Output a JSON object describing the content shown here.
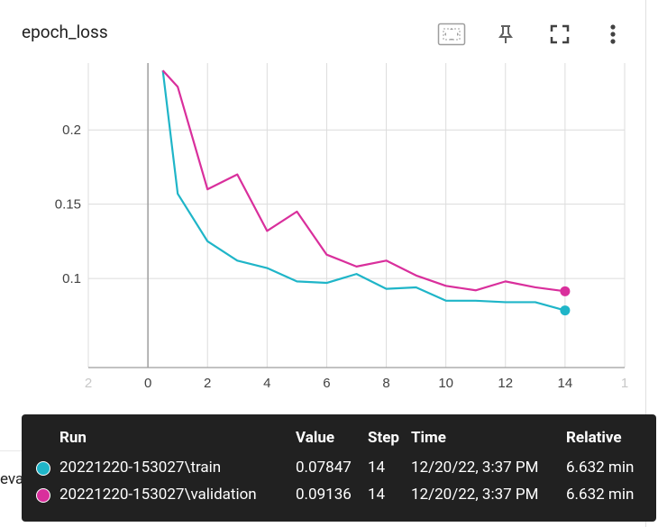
{
  "card": {
    "title": "epoch_loss"
  },
  "toolbar": {
    "icons": [
      "fit-domain-icon",
      "pin-icon",
      "fullscreen-icon",
      "more-vert-icon"
    ]
  },
  "colors": {
    "train": "#1fb5c8",
    "validation": "#d92f9c",
    "grid": "#dcdcdc",
    "axis": "#9e9e9e"
  },
  "chart_data": {
    "type": "line",
    "x_ticks": [
      "2",
      "0",
      "2",
      "4",
      "6",
      "8",
      "10",
      "12",
      "14",
      "1"
    ],
    "y_ticks": [
      "0.2",
      "0.15",
      "0.1"
    ],
    "series": [
      {
        "name": "20221220-153027\\train",
        "x": [
          0.5,
          1,
          2,
          3,
          4,
          5,
          6,
          7,
          8,
          9,
          10,
          11,
          12,
          13,
          14
        ],
        "y": [
          0.24,
          0.157,
          0.125,
          0.112,
          0.107,
          0.098,
          0.097,
          0.103,
          0.093,
          0.094,
          0.085,
          0.085,
          0.084,
          0.084,
          0.07847
        ]
      },
      {
        "name": "20221220-153027\\validation",
        "x": [
          0.5,
          1,
          2,
          3,
          4,
          5,
          6,
          7,
          8,
          9,
          10,
          11,
          12,
          13,
          14
        ],
        "y": [
          0.24,
          0.229,
          0.16,
          0.17,
          0.132,
          0.145,
          0.116,
          0.108,
          0.112,
          0.102,
          0.095,
          0.092,
          0.098,
          0.094,
          0.09136
        ]
      }
    ],
    "xlim": [
      -2,
      16
    ],
    "ylim": [
      0.04,
      0.245
    ]
  },
  "peek_title": "evaluation_accuracy_vs_iterations",
  "tooltip": {
    "headers": {
      "run": "Run",
      "value": "Value",
      "step": "Step",
      "time": "Time",
      "relative": "Relative"
    },
    "rows": [
      {
        "color": "#1fb5c8",
        "run": "20221220-153027\\train",
        "value": "0.07847",
        "step": "14",
        "time": "12/20/22, 3:37 PM",
        "relative": "6.632 min"
      },
      {
        "color": "#d92f9c",
        "run": "20221220-153027\\validation",
        "value": "0.09136",
        "step": "14",
        "time": "12/20/22, 3:37 PM",
        "relative": "6.632 min"
      }
    ]
  }
}
